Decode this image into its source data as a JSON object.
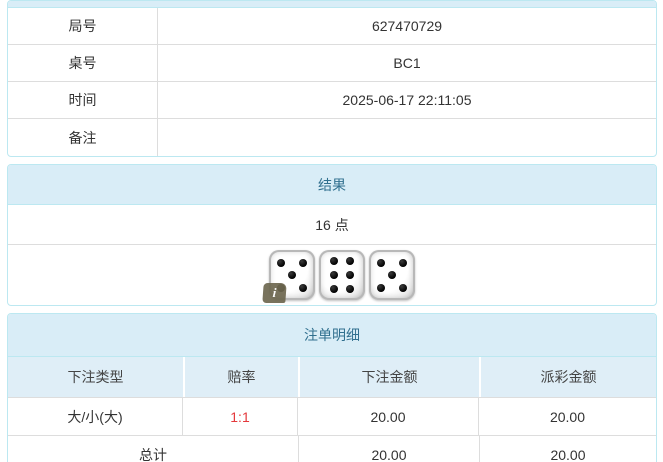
{
  "colors": {
    "heading_bg": "#d9edf7",
    "heading_text": "#31708f",
    "panel_border": "#bce8f1",
    "table_head_bg": "#dfeef7",
    "row_border": "#dddddd",
    "text": "#333333",
    "odds_red": "#e4393c",
    "badge_bg": "#6e6850"
  },
  "game_info": {
    "rows": [
      {
        "label": "局号",
        "value": "627470729"
      },
      {
        "label": "桌号",
        "value": "BC1"
      },
      {
        "label": "时间",
        "value": "2025-06-17 22:11:05"
      },
      {
        "label": "备注",
        "value": ""
      }
    ]
  },
  "result_panel": {
    "title": "结果",
    "points": "16 点",
    "dice": [
      5,
      6,
      5
    ],
    "info_icon": "i"
  },
  "bets_panel": {
    "title": "注单明细",
    "columns": [
      "下注类型",
      "赔率",
      "下注金额",
      "派彩金额"
    ],
    "rows": [
      {
        "bet_type": "大/小(大)",
        "odds": "1:1",
        "bet_amount": "20.00",
        "payout_amount": "20.00"
      }
    ],
    "total_row": {
      "label": "总计",
      "bet_amount": "20.00",
      "payout_amount": "20.00"
    }
  }
}
